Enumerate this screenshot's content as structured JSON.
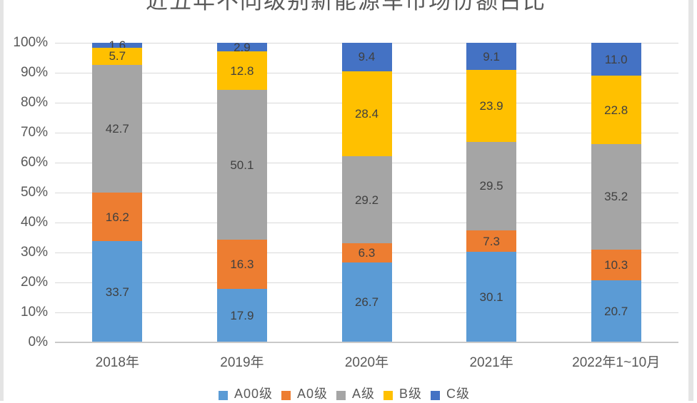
{
  "chart_data": {
    "type": "bar",
    "subtype": "stacked-100",
    "title": "近五年不同级别新能源车市场份额占比",
    "categories": [
      "2018年",
      "2019年",
      "2020年",
      "2021年",
      "2022年1~10月"
    ],
    "series": [
      {
        "name": "A00级",
        "color": "#5B9BD5",
        "values": [
          33.7,
          17.9,
          26.7,
          30.1,
          20.7
        ],
        "labels": [
          "33.7",
          "17.9",
          "26.7",
          "30.1",
          "20.7"
        ]
      },
      {
        "name": "A0级",
        "color": "#ED7D31",
        "values": [
          16.2,
          16.3,
          6.3,
          7.3,
          10.3
        ],
        "labels": [
          "16.2",
          "16.3",
          "6.3",
          "7.3",
          "10.3"
        ]
      },
      {
        "name": "A级",
        "color": "#A5A5A5",
        "values": [
          42.7,
          50.1,
          29.2,
          29.5,
          35.2
        ],
        "labels": [
          "42.7",
          "50.1",
          "29.2",
          "29.5",
          "35.2"
        ]
      },
      {
        "name": "B级",
        "color": "#FFC000",
        "values": [
          5.7,
          12.8,
          28.4,
          23.9,
          22.8
        ],
        "labels": [
          "5.7",
          "12.8",
          "28.4",
          "23.9",
          "22.8"
        ]
      },
      {
        "name": "C级",
        "color": "#4472C4",
        "values": [
          1.6,
          2.9,
          9.4,
          9.1,
          11.0
        ],
        "labels": [
          "1.6",
          "2.9",
          "9.4",
          "9.1",
          "11.0"
        ]
      }
    ],
    "y_axis": {
      "ticks": [
        "0%",
        "10%",
        "20%",
        "30%",
        "40%",
        "50%",
        "60%",
        "70%",
        "80%",
        "90%",
        "100%"
      ],
      "ylim": [
        0,
        100
      ],
      "grid": true
    },
    "legend": {
      "position": "bottom",
      "entries": [
        "A00级",
        "A0级",
        "A级",
        "B级",
        "C级"
      ]
    },
    "style": {
      "gridline_color": "#D9D9D9",
      "axis_line_color": "#C9C9C9",
      "tick_label_color": "#595959",
      "data_label_color": "#404040",
      "title_color": "#595959"
    }
  }
}
